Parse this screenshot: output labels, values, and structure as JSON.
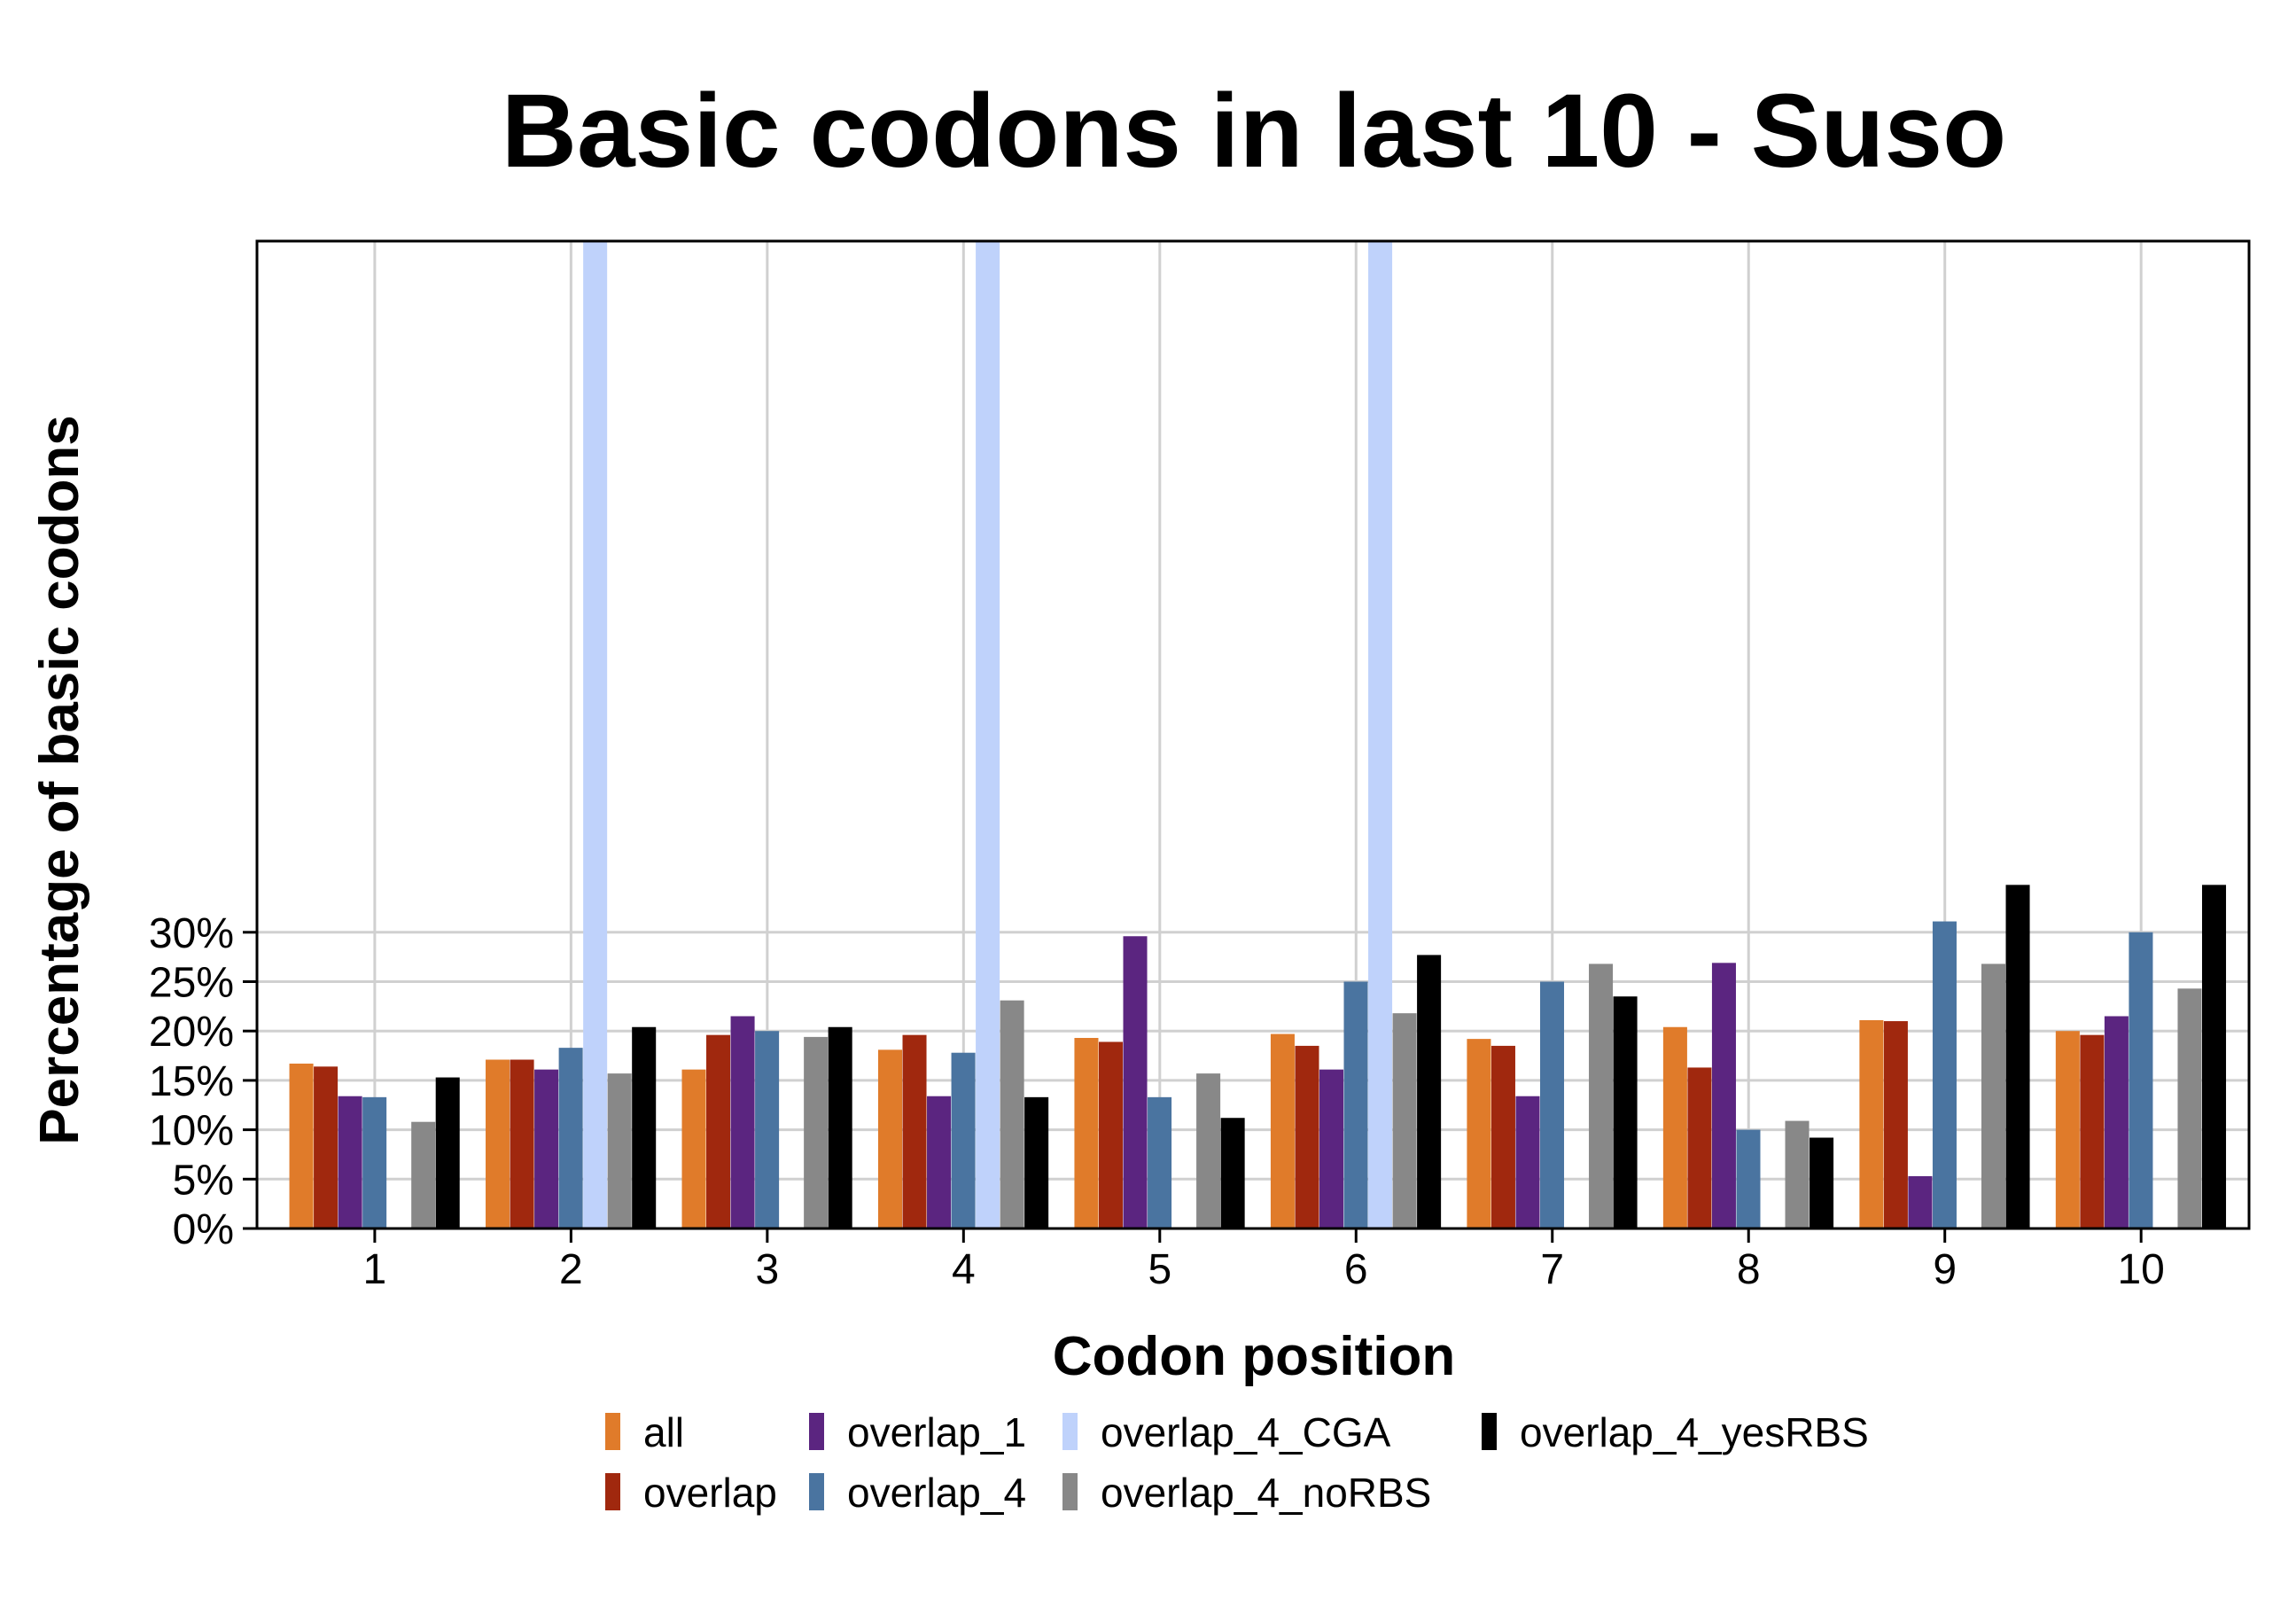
{
  "chart_data": {
    "type": "bar",
    "title": "Basic codons in last 10 - Suso",
    "xlabel": "Codon position",
    "ylabel": "Percentage of basic codons",
    "categories": [
      "1",
      "2",
      "3",
      "4",
      "5",
      "6",
      "7",
      "8",
      "9",
      "10"
    ],
    "yticks": [
      "0%",
      "5%",
      "10%",
      "15%",
      "20%",
      "25%",
      "30%"
    ],
    "ytick_values": [
      0,
      5,
      10,
      15,
      20,
      25,
      30
    ],
    "ylim": [
      0,
      100
    ],
    "grid": true,
    "legend_position": "bottom",
    "series": [
      {
        "name": "all",
        "color": "#E07B2A",
        "values": [
          16.7,
          17.1,
          16.1,
          18.1,
          19.3,
          19.7,
          19.2,
          20.4,
          21.1,
          20.0
        ]
      },
      {
        "name": "overlap",
        "color": "#A0280E",
        "values": [
          16.4,
          17.1,
          19.6,
          19.6,
          18.9,
          18.5,
          18.5,
          16.3,
          21.0,
          19.6
        ]
      },
      {
        "name": "overlap_1",
        "color": "#5B2580",
        "values": [
          13.4,
          16.1,
          21.5,
          13.4,
          29.6,
          16.1,
          13.4,
          26.9,
          5.3,
          21.5
        ]
      },
      {
        "name": "overlap_4",
        "color": "#4A74A0",
        "values": [
          13.3,
          18.3,
          20.0,
          17.8,
          13.3,
          25.0,
          25.0,
          10.0,
          31.1,
          30.0
        ]
      },
      {
        "name": "overlap_4_CGA",
        "color": "#BFD2FB",
        "values": [
          0,
          100,
          0,
          100,
          0,
          100,
          0,
          0,
          0,
          0
        ]
      },
      {
        "name": "overlap_4_noRBS",
        "color": "#888888",
        "values": [
          10.8,
          15.7,
          19.4,
          23.1,
          15.7,
          21.8,
          26.8,
          10.9,
          26.8,
          24.3
        ]
      },
      {
        "name": "overlap_4_yesRBS",
        "color": "#000000",
        "values": [
          15.3,
          20.4,
          20.4,
          13.3,
          11.2,
          27.7,
          23.5,
          9.2,
          34.8,
          34.8
        ]
      }
    ]
  }
}
